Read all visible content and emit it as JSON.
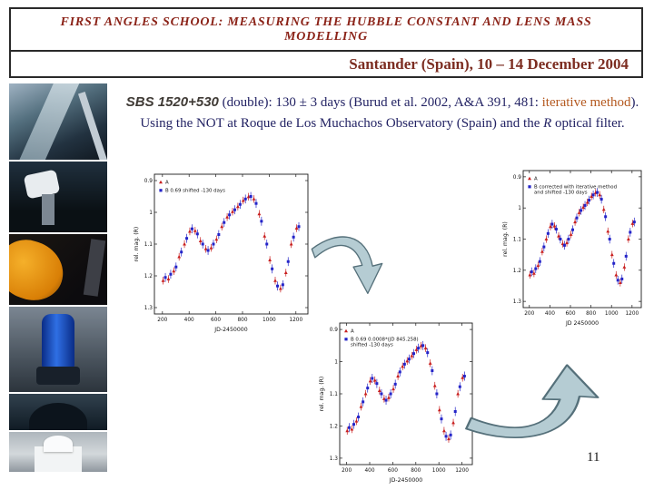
{
  "colors": {
    "title_color": "#8b2318",
    "subtitle_color": "#7c2d21",
    "body_color": "#232364",
    "object_color": "#3f3a35",
    "highlight_color": "#b4591f",
    "arrow_fill": "#b5ccd3",
    "arrow_stroke": "#55707a",
    "border_color": "#2a2a2a",
    "series_a_color": "#c81e1e",
    "series_b_color": "#2424c8"
  },
  "header": {
    "title": "FIRST ANGLES SCHOOL: MEASURING THE HUBBLE CONSTANT AND LENS MASS MODELLING",
    "subtitle": "Santander (Spain), 10 – 14 December 2004"
  },
  "body": {
    "object_name": "SBS 1520+530",
    "seg1": " (double): 130 ± 3 days (Burud et al. 2002, A&A 391, 481: ",
    "highlight": "iterative method",
    "seg2": "). Using the NOT at Roque de Los Muchachos Observatory (Spain) and the ",
    "filter_letter": "R",
    "seg3": " optical filter."
  },
  "photos": [
    {
      "name": "dome-interior"
    },
    {
      "name": "telescope-in-dome"
    },
    {
      "name": "orange-telescope-mount"
    },
    {
      "name": "blue-telescope"
    },
    {
      "name": "dome-silhouette"
    },
    {
      "name": "white-observatory-building"
    }
  ],
  "page_number": "11",
  "chart_data": [
    {
      "id": "light-curve-shifted",
      "type": "scatter",
      "xlabel": "JD-2450000",
      "ylabel": "rel. mag. (R)",
      "xlim": [
        140,
        1290
      ],
      "ylim": [
        0.88,
        1.32
      ],
      "xticks": [
        200,
        400,
        600,
        800,
        1000,
        1200
      ],
      "yticks": [
        0.9,
        1,
        1.1,
        1.2,
        1.3
      ],
      "legend": [
        {
          "series": "A",
          "lines": [
            "A"
          ]
        },
        {
          "series": "B",
          "lines": [
            "B  0.69 shifted -130 days"
          ]
        }
      ],
      "series": [
        {
          "name": "A",
          "color": "#c81e1e",
          "marker": "triangle",
          "err": 0.012,
          "points": [
            [
              205,
              1.215
            ],
            [
              245,
              1.21
            ],
            [
              285,
              1.185
            ],
            [
              325,
              1.14
            ],
            [
              365,
              1.1
            ],
            [
              405,
              1.06
            ],
            [
              445,
              1.058
            ],
            [
              485,
              1.09
            ],
            [
              525,
              1.115
            ],
            [
              565,
              1.112
            ],
            [
              605,
              1.085
            ],
            [
              645,
              1.045
            ],
            [
              685,
              1.015
            ],
            [
              725,
              0.998
            ],
            [
              765,
              0.982
            ],
            [
              805,
              0.963
            ],
            [
              845,
              0.951
            ],
            [
              885,
              0.958
            ],
            [
              925,
              1.005
            ],
            [
              965,
              1.075
            ],
            [
              1005,
              1.15
            ],
            [
              1045,
              1.215
            ],
            [
              1085,
              1.24
            ],
            [
              1125,
              1.19
            ],
            [
              1165,
              1.1
            ],
            [
              1205,
              1.05
            ]
          ]
        },
        {
          "name": "B",
          "color": "#2424c8",
          "marker": "square",
          "err": 0.014,
          "points": [
            [
              222,
              1.205
            ],
            [
              262,
              1.195
            ],
            [
              302,
              1.172
            ],
            [
              342,
              1.125
            ],
            [
              382,
              1.082
            ],
            [
              422,
              1.052
            ],
            [
              462,
              1.068
            ],
            [
              502,
              1.1
            ],
            [
              542,
              1.12
            ],
            [
              582,
              1.1
            ],
            [
              622,
              1.07
            ],
            [
              662,
              1.032
            ],
            [
              702,
              1.008
            ],
            [
              742,
              0.992
            ],
            [
              782,
              0.975
            ],
            [
              822,
              0.958
            ],
            [
              862,
              0.95
            ],
            [
              902,
              0.972
            ],
            [
              942,
              1.028
            ],
            [
              982,
              1.1
            ],
            [
              1022,
              1.178
            ],
            [
              1062,
              1.232
            ],
            [
              1102,
              1.228
            ],
            [
              1142,
              1.155
            ],
            [
              1182,
              1.078
            ],
            [
              1222,
              1.045
            ]
          ]
        }
      ]
    },
    {
      "id": "light-curve-iterative",
      "type": "scatter",
      "xlabel": "JD 2450000",
      "ylabel": "rel. mag. (R)",
      "xlim": [
        140,
        1290
      ],
      "ylim": [
        0.88,
        1.32
      ],
      "xticks": [
        200,
        400,
        600,
        800,
        1000,
        1200
      ],
      "yticks": [
        0.9,
        1,
        1.1,
        1.2,
        1.3
      ],
      "legend": [
        {
          "series": "A",
          "lines": [
            "A"
          ]
        },
        {
          "series": "B",
          "lines": [
            "B corrected with iterative method",
            "and shifted -130 days"
          ]
        }
      ],
      "series": [
        {
          "name": "A",
          "color": "#c81e1e",
          "marker": "triangle",
          "err": 0.012,
          "points": [
            [
              205,
              1.215
            ],
            [
              245,
              1.21
            ],
            [
              285,
              1.185
            ],
            [
              325,
              1.14
            ],
            [
              365,
              1.1
            ],
            [
              405,
              1.06
            ],
            [
              445,
              1.058
            ],
            [
              485,
              1.09
            ],
            [
              525,
              1.115
            ],
            [
              565,
              1.112
            ],
            [
              605,
              1.085
            ],
            [
              645,
              1.045
            ],
            [
              685,
              1.015
            ],
            [
              725,
              0.998
            ],
            [
              765,
              0.982
            ],
            [
              805,
              0.963
            ],
            [
              845,
              0.951
            ],
            [
              885,
              0.958
            ],
            [
              925,
              1.005
            ],
            [
              965,
              1.075
            ],
            [
              1005,
              1.15
            ],
            [
              1045,
              1.215
            ],
            [
              1085,
              1.24
            ],
            [
              1125,
              1.19
            ],
            [
              1165,
              1.1
            ],
            [
              1205,
              1.05
            ]
          ]
        },
        {
          "name": "B",
          "color": "#2424c8",
          "marker": "square",
          "err": 0.014,
          "points": [
            [
              222,
              1.205
            ],
            [
              262,
              1.195
            ],
            [
              302,
              1.172
            ],
            [
              342,
              1.125
            ],
            [
              382,
              1.082
            ],
            [
              422,
              1.052
            ],
            [
              462,
              1.068
            ],
            [
              502,
              1.1
            ],
            [
              542,
              1.12
            ],
            [
              582,
              1.1
            ],
            [
              622,
              1.07
            ],
            [
              662,
              1.032
            ],
            [
              702,
              1.008
            ],
            [
              742,
              0.992
            ],
            [
              782,
              0.975
            ],
            [
              822,
              0.958
            ],
            [
              862,
              0.95
            ],
            [
              902,
              0.972
            ],
            [
              942,
              1.028
            ],
            [
              982,
              1.1
            ],
            [
              1022,
              1.178
            ],
            [
              1062,
              1.232
            ],
            [
              1102,
              1.228
            ],
            [
              1142,
              1.155
            ],
            [
              1182,
              1.078
            ],
            [
              1222,
              1.045
            ]
          ]
        }
      ]
    },
    {
      "id": "light-curve-linear-correction",
      "type": "scatter",
      "xlabel": "JD-2450000",
      "ylabel": "rel. mag. (R)",
      "xlim": [
        140,
        1290
      ],
      "ylim": [
        0.88,
        1.32
      ],
      "xticks": [
        200,
        400,
        600,
        800,
        1000,
        1200
      ],
      "yticks": [
        0.9,
        1,
        1.1,
        1.2,
        1.3
      ],
      "legend": [
        {
          "series": "A",
          "lines": [
            "A"
          ]
        },
        {
          "series": "B",
          "lines": [
            "B  0.69  0.0008*(JD 845.258)",
            "shifted -130 days"
          ]
        }
      ],
      "series": [
        {
          "name": "A",
          "color": "#c81e1e",
          "marker": "triangle",
          "err": 0.012,
          "points": [
            [
              205,
              1.215
            ],
            [
              245,
              1.21
            ],
            [
              285,
              1.185
            ],
            [
              325,
              1.14
            ],
            [
              365,
              1.1
            ],
            [
              405,
              1.06
            ],
            [
              445,
              1.058
            ],
            [
              485,
              1.09
            ],
            [
              525,
              1.115
            ],
            [
              565,
              1.112
            ],
            [
              605,
              1.085
            ],
            [
              645,
              1.045
            ],
            [
              685,
              1.015
            ],
            [
              725,
              0.998
            ],
            [
              765,
              0.982
            ],
            [
              805,
              0.963
            ],
            [
              845,
              0.951
            ],
            [
              885,
              0.958
            ],
            [
              925,
              1.005
            ],
            [
              965,
              1.075
            ],
            [
              1005,
              1.15
            ],
            [
              1045,
              1.215
            ],
            [
              1085,
              1.24
            ],
            [
              1125,
              1.19
            ],
            [
              1165,
              1.1
            ],
            [
              1205,
              1.05
            ]
          ]
        },
        {
          "name": "B",
          "color": "#2424c8",
          "marker": "square",
          "err": 0.014,
          "points": [
            [
              222,
              1.205
            ],
            [
              262,
              1.195
            ],
            [
              302,
              1.172
            ],
            [
              342,
              1.125
            ],
            [
              382,
              1.082
            ],
            [
              422,
              1.052
            ],
            [
              462,
              1.068
            ],
            [
              502,
              1.1
            ],
            [
              542,
              1.12
            ],
            [
              582,
              1.1
            ],
            [
              622,
              1.07
            ],
            [
              662,
              1.032
            ],
            [
              702,
              1.008
            ],
            [
              742,
              0.992
            ],
            [
              782,
              0.975
            ],
            [
              822,
              0.958
            ],
            [
              862,
              0.95
            ],
            [
              902,
              0.972
            ],
            [
              942,
              1.028
            ],
            [
              982,
              1.1
            ],
            [
              1022,
              1.178
            ],
            [
              1062,
              1.232
            ],
            [
              1102,
              1.228
            ],
            [
              1142,
              1.155
            ],
            [
              1182,
              1.078
            ],
            [
              1222,
              1.045
            ]
          ]
        }
      ]
    }
  ]
}
